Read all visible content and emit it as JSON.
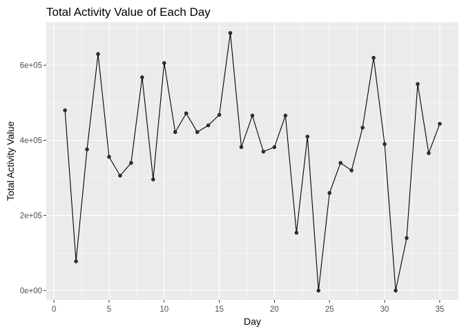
{
  "chart_data": {
    "type": "line",
    "title": "Total Activity Value of Each Day",
    "xlabel": "Day",
    "ylabel": "Total Activity Value",
    "xlim": [
      -0.7,
      36.7
    ],
    "ylim": [
      -25000,
      715000
    ],
    "xticks": [
      0,
      5,
      10,
      15,
      20,
      25,
      30,
      35
    ],
    "xtick_labels": [
      "0",
      "5",
      "10",
      "15",
      "20",
      "25",
      "30",
      "35"
    ],
    "yticks": [
      0,
      200000,
      400000,
      600000
    ],
    "ytick_labels": [
      "0e+00",
      "2e+05",
      "4e+05",
      "6e+05"
    ],
    "grid": true,
    "panel_background": "#EBEBEB",
    "grid_color": "#FFFFFF",
    "line_color": "#000000",
    "point_color": "#333333",
    "x": [
      1,
      2,
      3,
      4,
      5,
      6,
      7,
      8,
      9,
      10,
      11,
      12,
      13,
      14,
      15,
      16,
      17,
      18,
      19,
      20,
      21,
      22,
      23,
      24,
      25,
      26,
      27,
      28,
      29,
      30,
      31,
      32,
      33,
      34,
      35
    ],
    "values": [
      480000,
      78000,
      376000,
      630000,
      356000,
      306000,
      340000,
      568000,
      296000,
      606000,
      422000,
      472000,
      422000,
      440000,
      468000,
      686000,
      382000,
      466000,
      370000,
      382000,
      466000,
      154000,
      410000,
      0,
      260000,
      340000,
      320000,
      434000,
      620000,
      390000,
      0,
      140000,
      550000,
      366000,
      444000
    ]
  }
}
